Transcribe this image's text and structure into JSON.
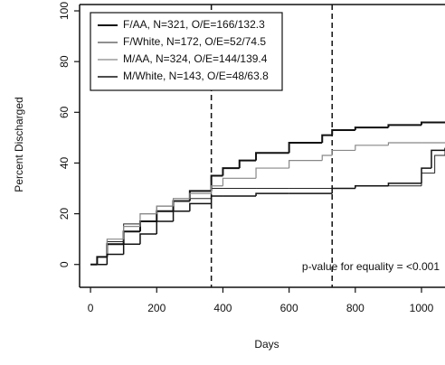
{
  "chart_data": {
    "type": "step",
    "xlabel": "Days",
    "ylabel": "Percent Discharged",
    "annotation": "p-value for equality = <0.001",
    "xlim": [
      -33,
      1071
    ],
    "ylim": [
      -9,
      102.5
    ],
    "xticks": [
      0,
      200,
      400,
      600,
      800,
      1000
    ],
    "yticks": [
      0,
      20,
      40,
      60,
      80,
      100
    ],
    "vlines": [
      365,
      730
    ],
    "legend": "upper left",
    "series": [
      {
        "name": "F/AA, N=321, O/E=166/132.3",
        "color": "#111111",
        "width": 2,
        "x": [
          0,
          20,
          50,
          100,
          150,
          200,
          250,
          300,
          365,
          400,
          450,
          500,
          600,
          700,
          730,
          800,
          900,
          1000,
          1071
        ],
        "values": [
          0,
          3,
          8,
          13,
          17,
          21,
          25,
          29,
          35,
          38,
          41,
          44,
          48,
          51,
          53,
          54,
          55,
          56,
          56
        ]
      },
      {
        "name": "F/White, N=172, O/E=52/74.5",
        "color": "#222222",
        "width": 1,
        "x": [
          0,
          50,
          100,
          150,
          200,
          250,
          300,
          365,
          400,
          500,
          600,
          730,
          800,
          900,
          1000,
          1040,
          1071
        ],
        "values": [
          0,
          9,
          16,
          20,
          23,
          25,
          26,
          30,
          30,
          30,
          30,
          30,
          31,
          31,
          36,
          43,
          45
        ]
      },
      {
        "name": "M/AA, N=324, O/E=144/139.4",
        "color": "#888888",
        "width": 1.2,
        "x": [
          0,
          50,
          100,
          150,
          200,
          250,
          300,
          365,
          400,
          500,
          600,
          700,
          730,
          800,
          900,
          1000,
          1071
        ],
        "values": [
          0,
          10,
          15,
          20,
          23,
          26,
          28,
          31,
          34,
          38,
          41,
          43,
          45,
          47,
          48,
          48,
          48
        ]
      },
      {
        "name": "M/White, N=143, O/E=48/63.8",
        "color": "#111111",
        "width": 1.5,
        "x": [
          0,
          50,
          100,
          150,
          200,
          250,
          300,
          365,
          400,
          500,
          600,
          730,
          800,
          900,
          1000,
          1030,
          1071
        ],
        "values": [
          0,
          4,
          8,
          12,
          17,
          21,
          24,
          27,
          27,
          28,
          28,
          30,
          31,
          32,
          38,
          45,
          46
        ]
      }
    ]
  }
}
